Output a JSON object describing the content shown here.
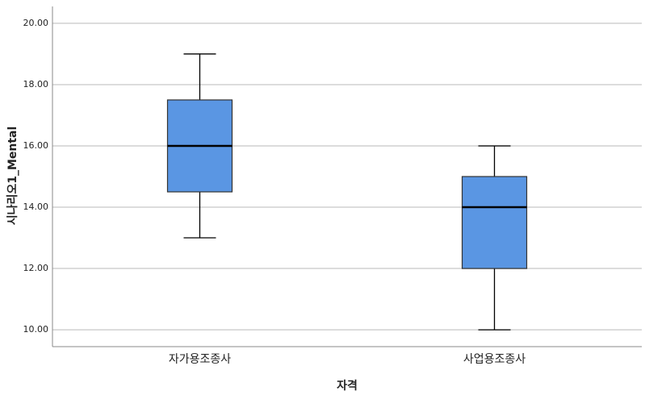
{
  "chart_data": {
    "type": "box",
    "x_label": "자격",
    "y_label": "시나리오1_Mental",
    "categories": [
      "자가용조종사",
      "사업용조종사"
    ],
    "boxes": [
      {
        "min": 13,
        "q1": 14.5,
        "median": 16,
        "q3": 17.5,
        "max": 19
      },
      {
        "min": 10,
        "q1": 12,
        "median": 14,
        "q3": 15,
        "max": 16
      }
    ],
    "color": "#5a96e3",
    "ylim": [
      9.45,
      20.55
    ],
    "yticks": [
      {
        "value": 10,
        "label": "10.00"
      },
      {
        "value": 12,
        "label": "12.00"
      },
      {
        "value": 14,
        "label": "14.00"
      },
      {
        "value": 16,
        "label": "16.00"
      },
      {
        "value": 18,
        "label": "18.00"
      },
      {
        "value": 20,
        "label": "20.00"
      }
    ],
    "grid": true
  }
}
